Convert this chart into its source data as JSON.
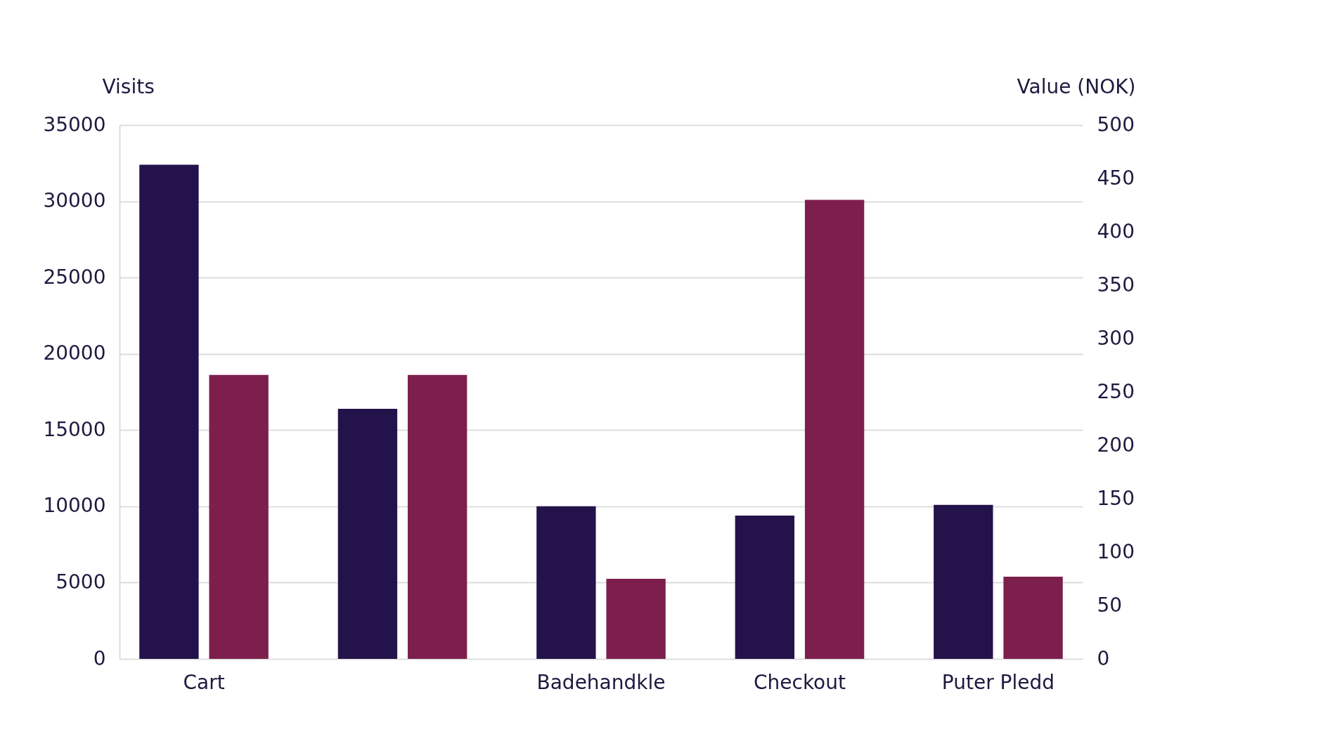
{
  "chart_data": {
    "type": "bar",
    "ylabel": "Visits",
    "y2label": "Value (NOK)",
    "categories": [
      "Cart",
      null,
      "Badehandkle",
      "Checkout",
      "Puter Pledd"
    ],
    "series": [
      {
        "color": "#24134a",
        "values": [
          32400,
          16400,
          10000,
          9400,
          10100
        ]
      },
      {
        "color": "#7d1f4d",
        "axis": "y2",
        "values": [
          266,
          266,
          75,
          430,
          77
        ]
      }
    ],
    "ylim": [
      0,
      35000
    ],
    "yticks": [
      0,
      5000,
      10000,
      15000,
      20000,
      25000,
      30000,
      35000
    ],
    "y2lim": [
      0,
      500
    ],
    "y2ticks": [
      0,
      50,
      100,
      150,
      200,
      250,
      300,
      350,
      400,
      450,
      500
    ],
    "grid": "y"
  }
}
